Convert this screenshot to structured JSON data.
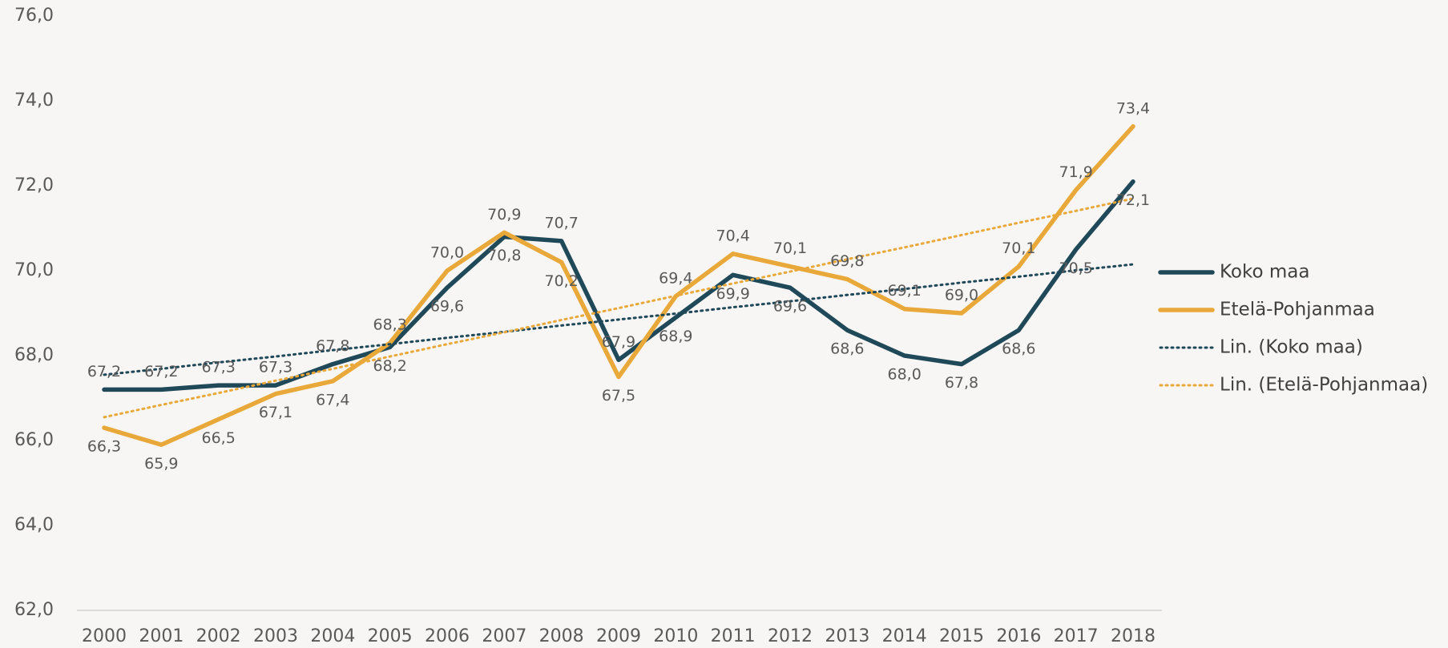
{
  "chart_data": {
    "type": "line",
    "categories": [
      "2000",
      "2001",
      "2002",
      "2003",
      "2004",
      "2005",
      "2006",
      "2007",
      "2008",
      "2009",
      "2010",
      "2011",
      "2012",
      "2013",
      "2014",
      "2015",
      "2016",
      "2017",
      "2018"
    ],
    "series": [
      {
        "name": "Koko maa",
        "color": "#1f4858",
        "style": "solid",
        "values": [
          67.2,
          67.2,
          67.3,
          67.3,
          67.8,
          68.2,
          69.6,
          70.8,
          70.7,
          67.9,
          68.9,
          69.9,
          69.6,
          68.6,
          68.0,
          67.8,
          68.6,
          70.5,
          72.1
        ],
        "value_labels": [
          "67,2",
          "67,2",
          "67,3",
          "67,3",
          "67,8",
          "68,2",
          "69,6",
          "70,8",
          "70,7",
          "67,9",
          "68,9",
          "69,9",
          "69,6",
          "68,6",
          "68,0",
          "67,8",
          "68,6",
          "70,5",
          "72,1"
        ]
      },
      {
        "name": "Etelä-Pohjanmaa",
        "color": "#e9a83a",
        "style": "solid",
        "values": [
          66.3,
          65.9,
          66.5,
          67.1,
          67.4,
          68.3,
          70.0,
          70.9,
          70.2,
          67.5,
          69.4,
          70.4,
          70.1,
          69.8,
          69.1,
          69.0,
          70.1,
          71.9,
          73.4
        ],
        "value_labels": [
          "66,3",
          "65,9",
          "66,5",
          "67,1",
          "67,4",
          "68,3",
          "70,0",
          "70,9",
          "70,2",
          "67,5",
          "69,4",
          "70,4",
          "70,1",
          "69,8",
          "69,1",
          "69,0",
          "70,1",
          "71,9",
          "73,4"
        ]
      },
      {
        "name": "Lin. (Koko maa)",
        "color": "#1f4858",
        "style": "dotted",
        "values": [
          67.55,
          67.69,
          67.84,
          67.98,
          68.13,
          68.27,
          68.42,
          68.56,
          68.71,
          68.85,
          68.99,
          69.14,
          69.28,
          69.43,
          69.57,
          69.72,
          69.86,
          70.01,
          70.15
        ]
      },
      {
        "name": "Lin. (Etelä-Pohjanmaa)",
        "color": "#e9a83a",
        "style": "dotted",
        "values": [
          66.55,
          66.84,
          67.12,
          67.41,
          67.69,
          67.98,
          68.27,
          68.55,
          68.84,
          69.12,
          69.41,
          69.7,
          69.98,
          70.27,
          70.55,
          70.84,
          71.13,
          71.41,
          71.7
        ]
      }
    ],
    "ylim": [
      62,
      76
    ],
    "yticks": [
      {
        "value": 62,
        "label": "62,0"
      },
      {
        "value": 64,
        "label": "64,0"
      },
      {
        "value": 66,
        "label": "66,0"
      },
      {
        "value": 68,
        "label": "68,0"
      },
      {
        "value": 70,
        "label": "70,0"
      },
      {
        "value": 72,
        "label": "72,0"
      },
      {
        "value": 74,
        "label": "74,0"
      },
      {
        "value": 76,
        "label": "76,0"
      }
    ],
    "legend": "right"
  }
}
